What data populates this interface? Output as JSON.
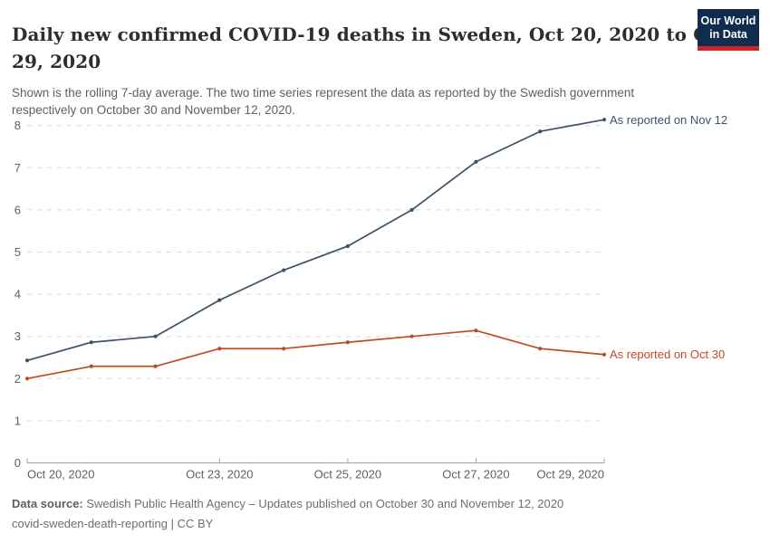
{
  "header": {
    "title": "Daily new confirmed COVID-19 deaths in Sweden, Oct 20, 2020 to Oct 29, 2020",
    "subtitle": "Shown is the rolling 7-day average. The two time series represent the data as reported by the Swedish government respectively on October 30 and November 12, 2020.",
    "logo": {
      "line1": "Our World",
      "line2": "in Data",
      "bg_color": "#102d50",
      "accent_color": "#d1232a"
    }
  },
  "chart_data": {
    "type": "line",
    "title": "Daily new confirmed COVID-19 deaths in Sweden, Oct 20, 2020 to Oct 29, 2020",
    "x": [
      "Oct 20, 2020",
      "Oct 21, 2020",
      "Oct 22, 2020",
      "Oct 23, 2020",
      "Oct 24, 2020",
      "Oct 25, 2020",
      "Oct 26, 2020",
      "Oct 27, 2020",
      "Oct 28, 2020",
      "Oct 29, 2020"
    ],
    "series": [
      {
        "name": "As reported on Nov 12",
        "color": "#3d5168",
        "values": [
          2.43,
          2.86,
          3.0,
          3.86,
          4.57,
          5.14,
          6.0,
          7.14,
          7.86,
          8.14
        ]
      },
      {
        "name": "As reported on Oct 30",
        "color": "#c04a26",
        "values": [
          2.0,
          2.29,
          2.29,
          2.71,
          2.71,
          2.86,
          3.0,
          3.14,
          2.71,
          2.57
        ]
      }
    ],
    "xlabel": "",
    "ylabel": "",
    "ylim": [
      0,
      8.6
    ],
    "yticks": [
      0,
      1,
      2,
      3,
      4,
      5,
      6,
      7,
      8
    ],
    "x_tick_labels": [
      "Oct 20, 2020",
      "Oct 23, 2020",
      "Oct 25, 2020",
      "Oct 27, 2020",
      "Oct 29, 2020"
    ],
    "x_tick_indices": [
      0,
      3,
      5,
      7,
      9
    ],
    "grid": "horizontal dashed",
    "legend_position": "line-end labels right of chart",
    "grid_color": "#d9d9d9",
    "axis_color": "#a3a3a3",
    "tick_label_color": "#606060"
  },
  "footer": {
    "source_label": "Data source:",
    "source_text": "Swedish Public Health Agency – Updates published on October 30 and November 12, 2020",
    "note_text": "covid-sweden-death-reporting | CC BY"
  }
}
